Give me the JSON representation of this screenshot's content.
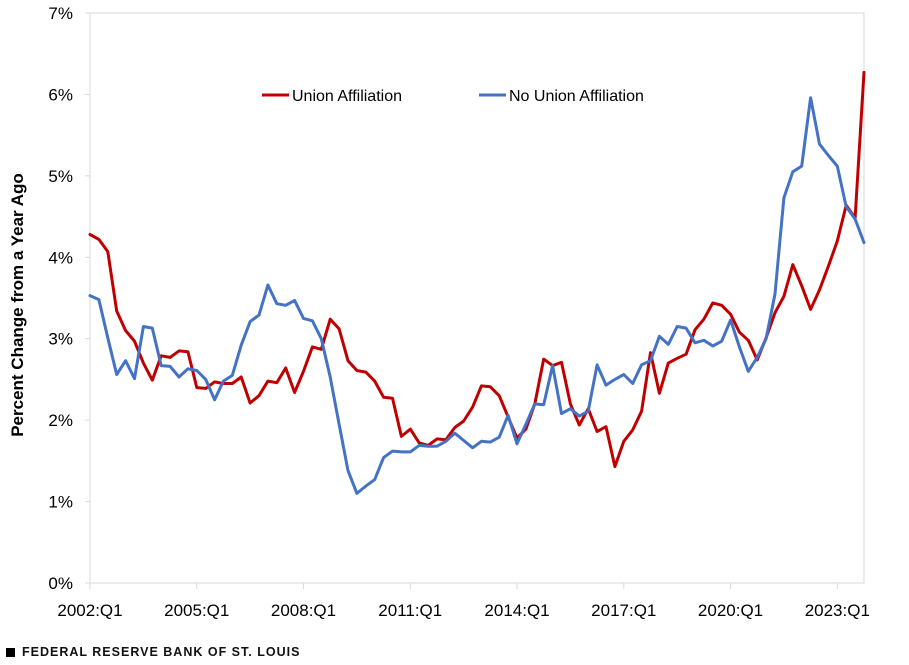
{
  "chart_data": {
    "type": "line",
    "ylabel": "Percent Change from a Year Ago",
    "xlabel": "",
    "ylim": [
      0,
      7
    ],
    "y_ticks": [
      {
        "value": 0,
        "label": "0%"
      },
      {
        "value": 1,
        "label": "1%"
      },
      {
        "value": 2,
        "label": "2%"
      },
      {
        "value": 3,
        "label": "3%"
      },
      {
        "value": 4,
        "label": "4%"
      },
      {
        "value": 5,
        "label": "5%"
      },
      {
        "value": 6,
        "label": "6%"
      },
      {
        "value": 7,
        "label": "7%"
      }
    ],
    "x_ticks": [
      "2002:Q1",
      "2005:Q1",
      "2008:Q1",
      "2011:Q1",
      "2014:Q1",
      "2017:Q1",
      "2020:Q1",
      "2023:Q1"
    ],
    "x_categories": [
      "2002:Q1",
      "2002:Q2",
      "2002:Q3",
      "2002:Q4",
      "2003:Q1",
      "2003:Q2",
      "2003:Q3",
      "2003:Q4",
      "2004:Q1",
      "2004:Q2",
      "2004:Q3",
      "2004:Q4",
      "2005:Q1",
      "2005:Q2",
      "2005:Q3",
      "2005:Q4",
      "2006:Q1",
      "2006:Q2",
      "2006:Q3",
      "2006:Q4",
      "2007:Q1",
      "2007:Q2",
      "2007:Q3",
      "2007:Q4",
      "2008:Q1",
      "2008:Q2",
      "2008:Q3",
      "2008:Q4",
      "2009:Q1",
      "2009:Q2",
      "2009:Q3",
      "2009:Q4",
      "2010:Q1",
      "2010:Q2",
      "2010:Q3",
      "2010:Q4",
      "2011:Q1",
      "2011:Q2",
      "2011:Q3",
      "2011:Q4",
      "2012:Q1",
      "2012:Q2",
      "2012:Q3",
      "2012:Q4",
      "2013:Q1",
      "2013:Q2",
      "2013:Q3",
      "2013:Q4",
      "2014:Q1",
      "2014:Q2",
      "2014:Q3",
      "2014:Q4",
      "2015:Q1",
      "2015:Q2",
      "2015:Q3",
      "2015:Q4",
      "2016:Q1",
      "2016:Q2",
      "2016:Q3",
      "2016:Q4",
      "2017:Q1",
      "2017:Q2",
      "2017:Q3",
      "2017:Q4",
      "2018:Q1",
      "2018:Q2",
      "2018:Q3",
      "2018:Q4",
      "2019:Q1",
      "2019:Q2",
      "2019:Q3",
      "2019:Q4",
      "2020:Q1",
      "2020:Q2",
      "2020:Q3",
      "2020:Q4",
      "2021:Q1",
      "2021:Q2",
      "2021:Q3",
      "2021:Q4",
      "2022:Q1",
      "2022:Q2",
      "2022:Q3",
      "2022:Q4",
      "2023:Q1",
      "2023:Q2",
      "2023:Q3",
      "2023:Q4"
    ],
    "grid": false,
    "legend_position": "top-center",
    "series": [
      {
        "name": "Union Affiliation",
        "color": "#c00000",
        "values": [
          4.28,
          4.22,
          4.07,
          3.34,
          3.1,
          2.97,
          2.7,
          2.49,
          2.79,
          2.77,
          2.85,
          2.84,
          2.4,
          2.39,
          2.47,
          2.45,
          2.45,
          2.53,
          2.21,
          2.3,
          2.48,
          2.46,
          2.64,
          2.34,
          2.6,
          2.9,
          2.87,
          3.24,
          3.12,
          2.73,
          2.61,
          2.59,
          2.48,
          2.28,
          2.27,
          1.8,
          1.89,
          1.72,
          1.69,
          1.77,
          1.76,
          1.91,
          1.99,
          2.16,
          2.42,
          2.41,
          2.3,
          2.04,
          1.78,
          1.89,
          2.2,
          2.75,
          2.67,
          2.71,
          2.2,
          1.94,
          2.14,
          1.86,
          1.92,
          1.43,
          1.74,
          1.88,
          2.11,
          2.83,
          2.33,
          2.7,
          2.76,
          2.81,
          3.11,
          3.24,
          3.44,
          3.41,
          3.3,
          3.08,
          2.98,
          2.74,
          3.01,
          3.32,
          3.52,
          3.91,
          3.65,
          3.36,
          3.6,
          3.89,
          4.2,
          4.64,
          4.48,
          6.27
        ]
      },
      {
        "name": "No Union Affiliation",
        "color": "#4472c4",
        "values": [
          3.53,
          3.48,
          3.01,
          2.56,
          2.73,
          2.51,
          3.15,
          3.13,
          2.67,
          2.66,
          2.53,
          2.63,
          2.61,
          2.5,
          2.25,
          2.48,
          2.55,
          2.92,
          3.21,
          3.29,
          3.66,
          3.43,
          3.41,
          3.47,
          3.25,
          3.22,
          3.0,
          2.53,
          1.95,
          1.38,
          1.1,
          1.19,
          1.27,
          1.54,
          1.62,
          1.61,
          1.61,
          1.69,
          1.68,
          1.68,
          1.74,
          1.84,
          1.75,
          1.66,
          1.74,
          1.73,
          1.79,
          2.06,
          1.71,
          1.95,
          2.2,
          2.19,
          2.67,
          2.08,
          2.14,
          2.05,
          2.11,
          2.68,
          2.43,
          2.5,
          2.56,
          2.45,
          2.68,
          2.73,
          3.03,
          2.93,
          3.15,
          3.13,
          2.95,
          2.98,
          2.91,
          2.97,
          3.23,
          2.9,
          2.6,
          2.77,
          3.0,
          3.55,
          4.73,
          5.05,
          5.12,
          5.96,
          5.39,
          5.25,
          5.12,
          4.62,
          4.47,
          4.18
        ]
      }
    ]
  },
  "footer": {
    "text": "FEDERAL RESERVE BANK OF ST. LOUIS"
  }
}
